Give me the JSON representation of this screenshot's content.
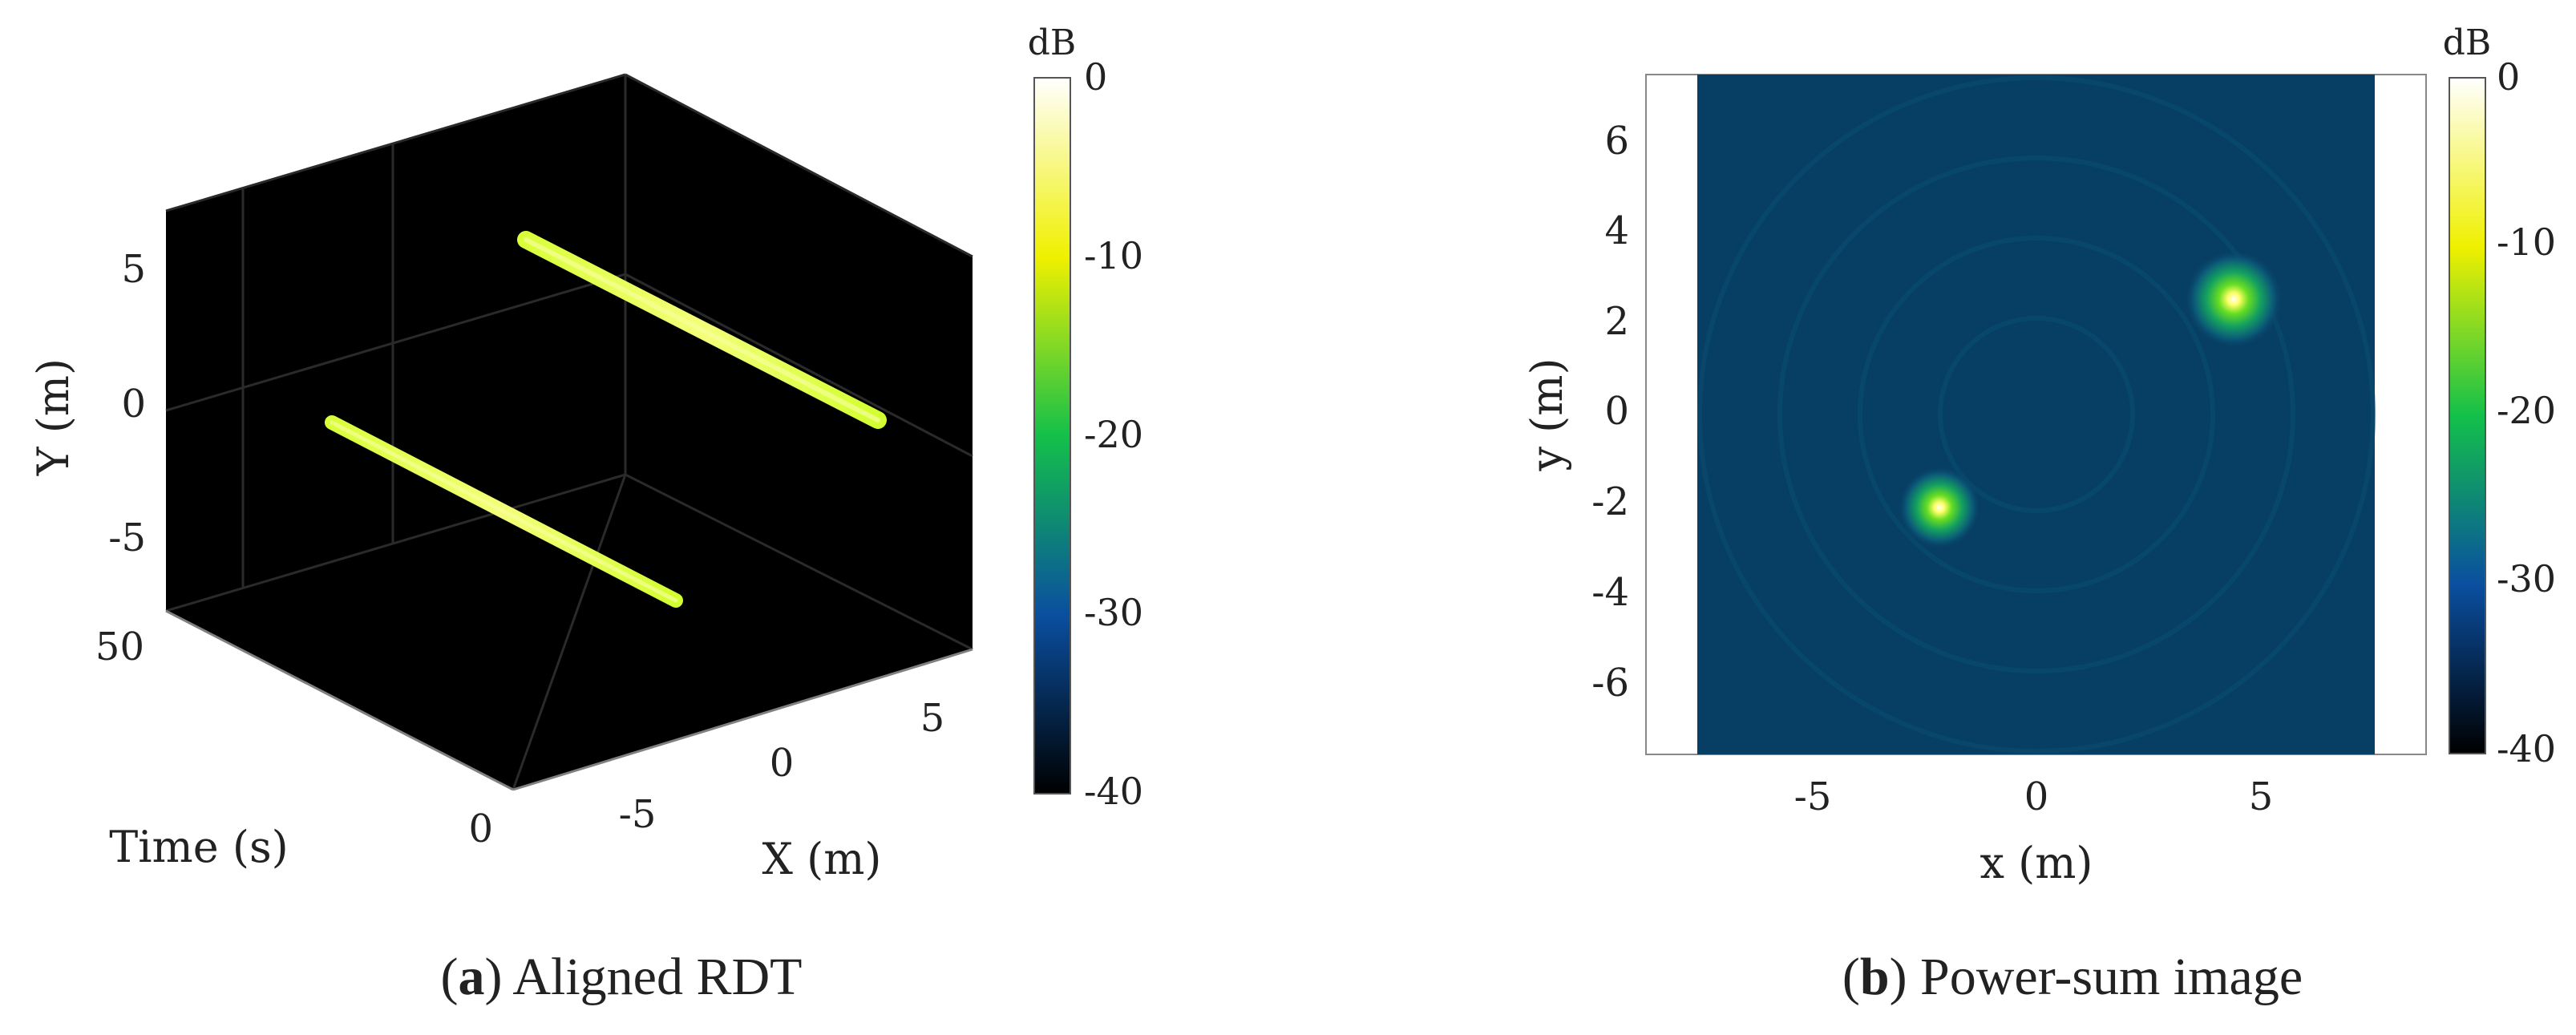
{
  "chart_data": [
    {
      "type": "scatter",
      "subplot": "a",
      "caption_letter": "a",
      "caption_text": "Aligned RDT",
      "xlabel": "X (m)",
      "ylabel": "Y (m)",
      "zlabel": "Time (s)",
      "xticks": [
        -5,
        0,
        5
      ],
      "yticks": [
        -5,
        0,
        5
      ],
      "zticks": [
        0,
        50
      ],
      "xlim": [
        -7.5,
        7.5
      ],
      "ylim": [
        -7.5,
        7.5
      ],
      "zlim": [
        0,
        60
      ],
      "background": "#000000",
      "grid": true,
      "series": [
        {
          "x": [
            -2.3,
            -2.3
          ],
          "y": [
            -2.1,
            -2.1
          ],
          "time": [
            0,
            60
          ]
        },
        {
          "x": [
            4.3,
            4.3
          ],
          "y": [
            2.5,
            2.5
          ],
          "time": [
            0,
            60
          ]
        }
      ],
      "colorbar": {
        "label": "dB",
        "ticks": [
          "0",
          "-10",
          "-20",
          "-30",
          "-40"
        ],
        "range": [
          -40,
          0
        ]
      }
    },
    {
      "type": "heatmap",
      "subplot": "b",
      "caption_letter": "b",
      "caption_text": "Power-sum image",
      "xlabel": "x (m)",
      "ylabel": "y (m)",
      "xticks": [
        "-5",
        "0",
        "5"
      ],
      "yticks": [
        "6",
        "4",
        "2",
        "0",
        "-2",
        "-4",
        "-6"
      ],
      "xlim": [
        -9,
        9
      ],
      "ylim": [
        -7.5,
        7.5
      ],
      "image_extent_x": [
        -7.5,
        7.5
      ],
      "background_level_db": -33,
      "peaks": [
        {
          "x": -2.2,
          "y": -2.1,
          "peak_db": 0
        },
        {
          "x": 4.3,
          "y": 2.5,
          "peak_db": 0
        }
      ],
      "colorbar": {
        "label": "dB",
        "ticks": [
          "0",
          "-10",
          "-20",
          "-30",
          "-40"
        ],
        "range": [
          -40,
          0
        ]
      }
    }
  ]
}
